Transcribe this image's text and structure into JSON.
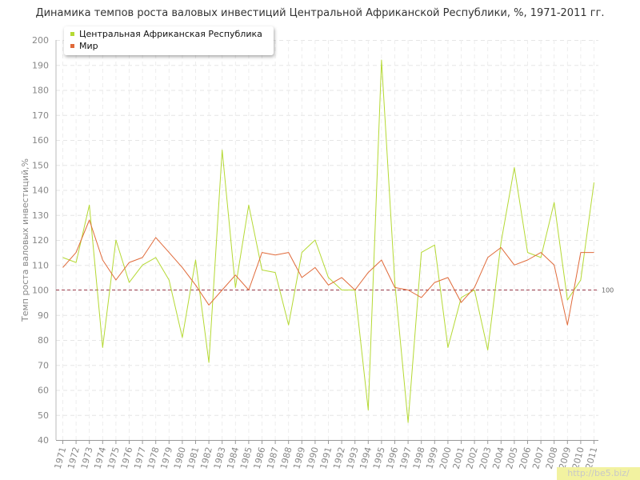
{
  "title": "Динамика темпов роста валовых инвестиций Центральной Африканской Республики, %, 1971-2011 гг.",
  "watermark": "http://be5.biz/",
  "chart_data": {
    "type": "line",
    "title": "Динамика темпов роста валовых инвестиций Центральной Африканской Республики, %, 1971-2011 гг.",
    "xlabel": "",
    "ylabel": "Темп роста валовых инвестиций,%",
    "ylim": [
      40,
      200
    ],
    "yticks": [
      40,
      50,
      60,
      70,
      80,
      90,
      100,
      110,
      120,
      130,
      140,
      150,
      160,
      170,
      180,
      190,
      200
    ],
    "grid": true,
    "legend_position": "top-left",
    "reference_line": {
      "value": 100,
      "label": "100",
      "color": "#a04050"
    },
    "x": [
      "1971",
      "1972",
      "1973",
      "1974",
      "1975",
      "1976",
      "1977",
      "1978",
      "1979",
      "1980",
      "1981",
      "1982",
      "1983",
      "1984",
      "1985",
      "1986",
      "1987",
      "1988",
      "1989",
      "1990",
      "1991",
      "1992",
      "1993",
      "1994",
      "1995",
      "1996",
      "1997",
      "1998",
      "1999",
      "2000",
      "2001",
      "2002",
      "2003",
      "2004",
      "2005",
      "2006",
      "2007",
      "2008",
      "2009",
      "2010",
      "2011"
    ],
    "series": [
      {
        "name": "Центральная Африканская Республика",
        "color": "#b5d934",
        "values": [
          113,
          111,
          134,
          77,
          120,
          103,
          110,
          113,
          104,
          81,
          112,
          71,
          156,
          101,
          134,
          108,
          107,
          86,
          115,
          120,
          105,
          100,
          100,
          52,
          192,
          103,
          47,
          115,
          118,
          77,
          97,
          100,
          76,
          119,
          149,
          115,
          113,
          135,
          96,
          104,
          143
        ]
      },
      {
        "name": "Мир",
        "color": "#e06a3a",
        "values": [
          109,
          115,
          128,
          112,
          104,
          111,
          113,
          121,
          115,
          109,
          102,
          94,
          100,
          106,
          100,
          115,
          114,
          115,
          105,
          109,
          102,
          105,
          100,
          107,
          112,
          101,
          100,
          97,
          103,
          105,
          95,
          101,
          113,
          117,
          110,
          112,
          115,
          110,
          86,
          115,
          115
        ]
      }
    ]
  }
}
